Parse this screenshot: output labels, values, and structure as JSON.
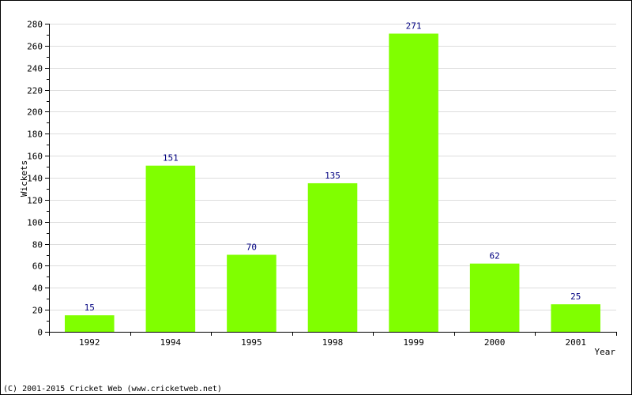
{
  "chart_data": {
    "type": "bar",
    "categories": [
      "1992",
      "1994",
      "1995",
      "1998",
      "1999",
      "2000",
      "2001"
    ],
    "values": [
      15,
      151,
      70,
      135,
      271,
      62,
      25
    ],
    "xlabel": "Year",
    "ylabel": "Wickets",
    "ylim": [
      0,
      280
    ],
    "yticks": [
      0,
      20,
      40,
      60,
      80,
      100,
      120,
      140,
      160,
      180,
      200,
      220,
      240,
      260,
      280
    ],
    "grid": true,
    "bar_color": "#80ff00",
    "label_color": "#000080",
    "grid_color": "#dddddd"
  },
  "footer": {
    "copyright": "(C) 2001-2015 Cricket Web (www.cricketweb.net)"
  }
}
